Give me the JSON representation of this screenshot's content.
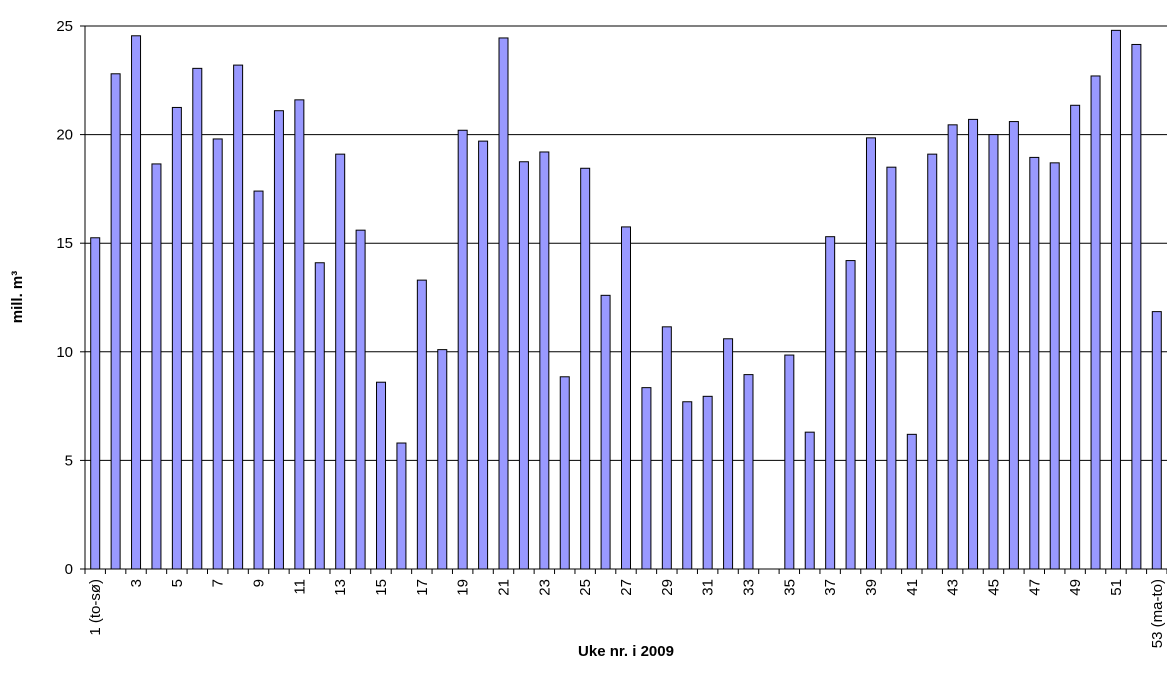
{
  "chart_data": {
    "type": "bar",
    "x_label": "Uke nr. i 2009",
    "y_label": "mill. m³",
    "categories": [
      "1 (to-sø)",
      null,
      "3",
      null,
      "5",
      null,
      "7",
      null,
      "9",
      null,
      "11",
      null,
      "13",
      null,
      "15",
      null,
      "17",
      null,
      "19",
      null,
      "21",
      null,
      "23",
      null,
      "25",
      null,
      "27",
      null,
      "29",
      null,
      "31",
      null,
      "33",
      null,
      "35",
      null,
      "37",
      null,
      "39",
      null,
      "41",
      null,
      "43",
      null,
      "45",
      null,
      "47",
      null,
      "49",
      null,
      "51",
      null,
      "53 (ma-to)"
    ],
    "values": [
      15.25,
      22.8,
      24.55,
      18.65,
      21.25,
      23.05,
      19.8,
      23.2,
      17.4,
      21.1,
      21.6,
      14.1,
      19.1,
      15.6,
      8.6,
      5.8,
      13.3,
      10.1,
      20.2,
      19.7,
      24.45,
      18.75,
      19.2,
      8.85,
      18.45,
      12.6,
      15.75,
      8.35,
      11.15,
      7.7,
      7.95,
      10.6,
      8.95,
      null,
      9.85,
      6.3,
      15.3,
      14.2,
      19.85,
      18.5,
      6.2,
      19.1,
      20.45,
      20.7,
      20.0,
      20.6,
      18.95,
      18.7,
      21.35,
      22.7,
      24.8,
      24.15,
      11.85
    ],
    "color": "#9999ff",
    "ylim": [
      0,
      25
    ],
    "yticks": [
      0,
      5,
      10,
      15,
      20,
      25
    ],
    "grid": true
  }
}
